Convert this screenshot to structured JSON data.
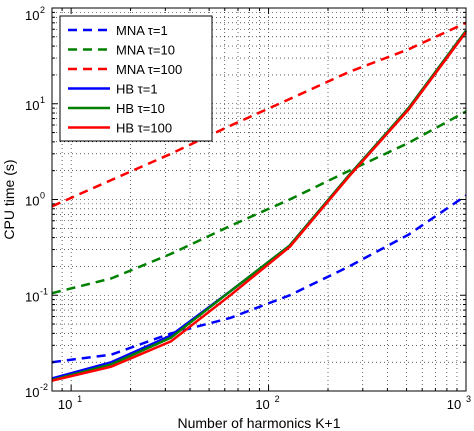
{
  "chart_data": {
    "type": "line",
    "xlabel": "Number of harmonics K+1",
    "ylabel": "CPU time (s)",
    "xscale": "log",
    "yscale": "log",
    "xlim": [
      8,
      1000
    ],
    "ylim": [
      0.01,
      100
    ],
    "x_ticks": [
      {
        "base": "10",
        "exp": "1"
      },
      {
        "base": "10",
        "exp": "2"
      },
      {
        "base": "10",
        "exp": "3"
      }
    ],
    "y_ticks": [
      {
        "base": "10",
        "exp": "-2"
      },
      {
        "base": "10",
        "exp": "-1"
      },
      {
        "base": "10",
        "exp": "0"
      },
      {
        "base": "10",
        "exp": "1"
      },
      {
        "base": "10",
        "exp": "2"
      }
    ],
    "grid": true,
    "legend_position": "top-left",
    "series": [
      {
        "name": "MNA τ=1",
        "color": "#0000ff",
        "dash": "dashed",
        "x": [
          8,
          16,
          32,
          64,
          128,
          256,
          512,
          1000
        ],
        "y": [
          0.02,
          0.024,
          0.04,
          0.058,
          0.1,
          0.2,
          0.43,
          1.1
        ]
      },
      {
        "name": "MNA τ=10",
        "color": "#008000",
        "dash": "dashed",
        "x": [
          8,
          16,
          32,
          64,
          128,
          256,
          512,
          1000
        ],
        "y": [
          0.105,
          0.15,
          0.27,
          0.53,
          1.0,
          2.0,
          3.9,
          8.3
        ]
      },
      {
        "name": "MNA τ=100",
        "color": "#ff0000",
        "dash": "dashed",
        "x": [
          8,
          16,
          32,
          64,
          128,
          256,
          512,
          1000
        ],
        "y": [
          0.85,
          1.6,
          3.0,
          5.9,
          11.2,
          21.5,
          37,
          70
        ]
      },
      {
        "name": "HB τ=1",
        "color": "#0000ff",
        "dash": "solid",
        "x": [
          8,
          16,
          32,
          64,
          128,
          256,
          512,
          1000
        ],
        "y": [
          0.0135,
          0.02,
          0.038,
          0.11,
          0.33,
          1.8,
          9,
          58
        ]
      },
      {
        "name": "HB τ=10",
        "color": "#008000",
        "dash": "solid",
        "x": [
          8,
          16,
          32,
          64,
          128,
          256,
          512,
          1000
        ],
        "y": [
          0.013,
          0.019,
          0.036,
          0.11,
          0.33,
          1.8,
          9,
          58
        ]
      },
      {
        "name": "HB τ=100",
        "color": "#ff0000",
        "dash": "solid",
        "x": [
          8,
          16,
          32,
          64,
          128,
          256,
          512,
          1000
        ],
        "y": [
          0.0128,
          0.018,
          0.033,
          0.1,
          0.32,
          1.75,
          8.7,
          56
        ]
      }
    ]
  }
}
